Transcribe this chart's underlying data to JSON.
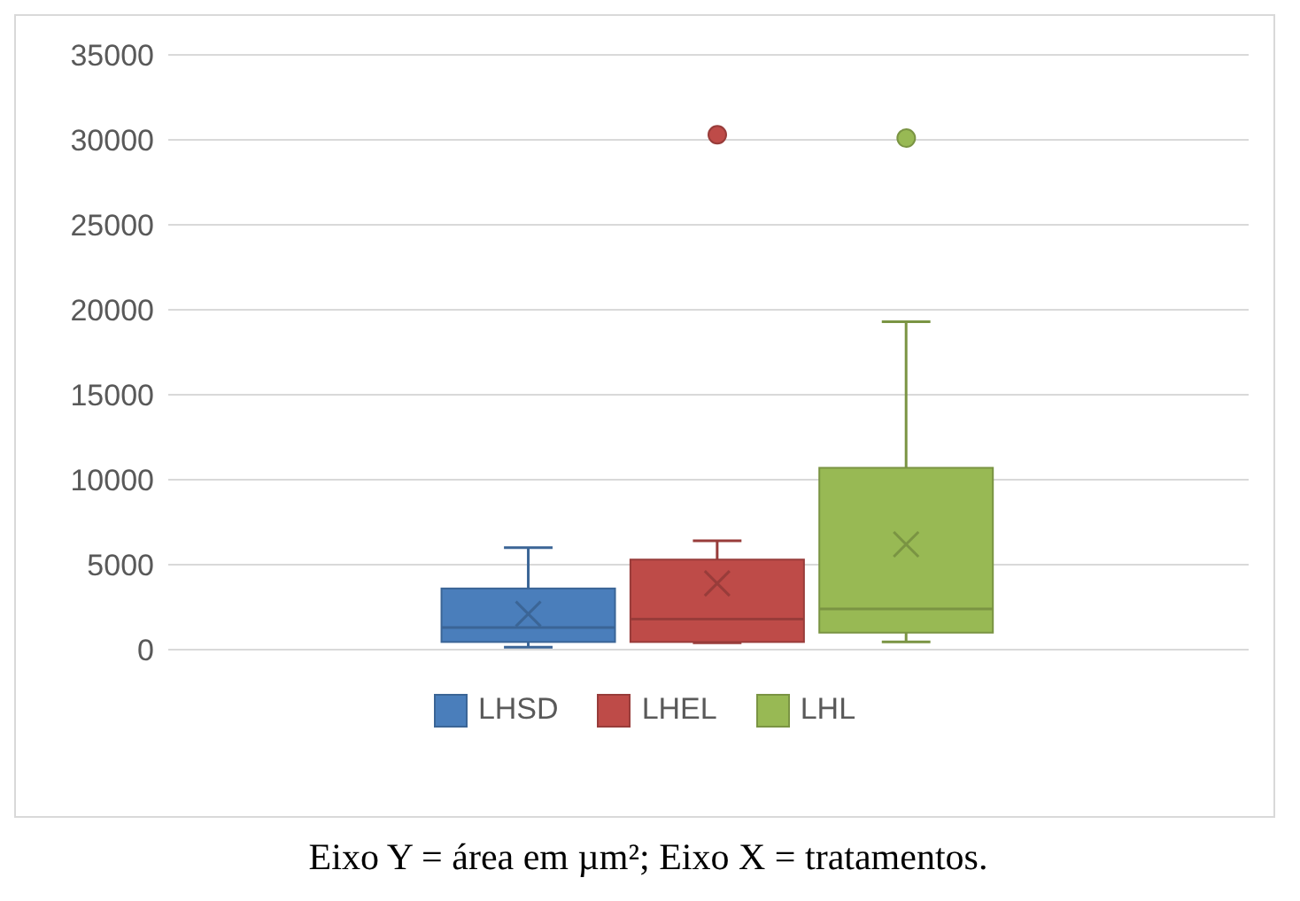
{
  "chart_data": {
    "type": "box",
    "categories": [
      null
    ],
    "ylim": [
      0,
      35000
    ],
    "yticks": [
      0,
      5000,
      10000,
      15000,
      20000,
      25000,
      30000,
      35000
    ],
    "grid": "y",
    "legend": "bottom",
    "series": [
      {
        "name": "LHSD",
        "color": "#4a7ebb",
        "boxes": [
          {
            "low": 140,
            "q1": 450,
            "median": 1300,
            "q3": 3600,
            "high": 6000,
            "mean": 2100
          }
        ]
      },
      {
        "name": "LHEL",
        "color": "#be4b48",
        "boxes": [
          {
            "low": 400,
            "q1": 450,
            "median": 1800,
            "q3": 5300,
            "high": 6400,
            "mean": 3900,
            "outliers": [
              30300
            ]
          }
        ]
      },
      {
        "name": "LHL",
        "color": "#98b954",
        "boxes": [
          {
            "low": 450,
            "q1": 1000,
            "median": 2400,
            "q3": 10700,
            "high": 19300,
            "mean": 6200,
            "outliers": [
              30100
            ]
          }
        ]
      }
    ],
    "annotations": [
      "Eixo Y = área em µm²; Eixo X = tratamentos."
    ]
  }
}
